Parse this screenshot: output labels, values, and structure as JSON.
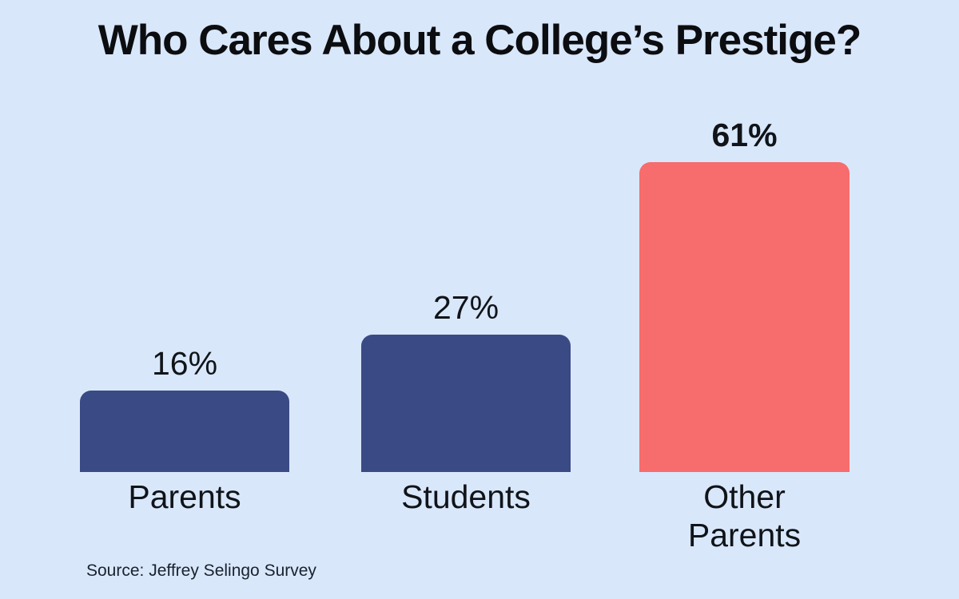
{
  "chart_data": {
    "type": "bar",
    "title": "Who Cares About a College’s Prestige?",
    "categories": [
      "Parents",
      "Students",
      "Other Parents"
    ],
    "category_labels": [
      "Parents",
      "Students",
      "Other\nParents"
    ],
    "values": [
      16,
      27,
      61
    ],
    "value_labels": [
      "16%",
      "27%",
      "61%"
    ],
    "unit": "%",
    "ylim": [
      0,
      65
    ],
    "axes_shown": false,
    "gridlines": false,
    "legend": "none",
    "bar_colors": [
      "#3a4a85",
      "#3a4a85",
      "#f76c6c"
    ],
    "highlight_index": 2,
    "background_color": "#d9e7fa"
  },
  "footer": {
    "source": "Source: Jeffrey Selingo Survey"
  }
}
